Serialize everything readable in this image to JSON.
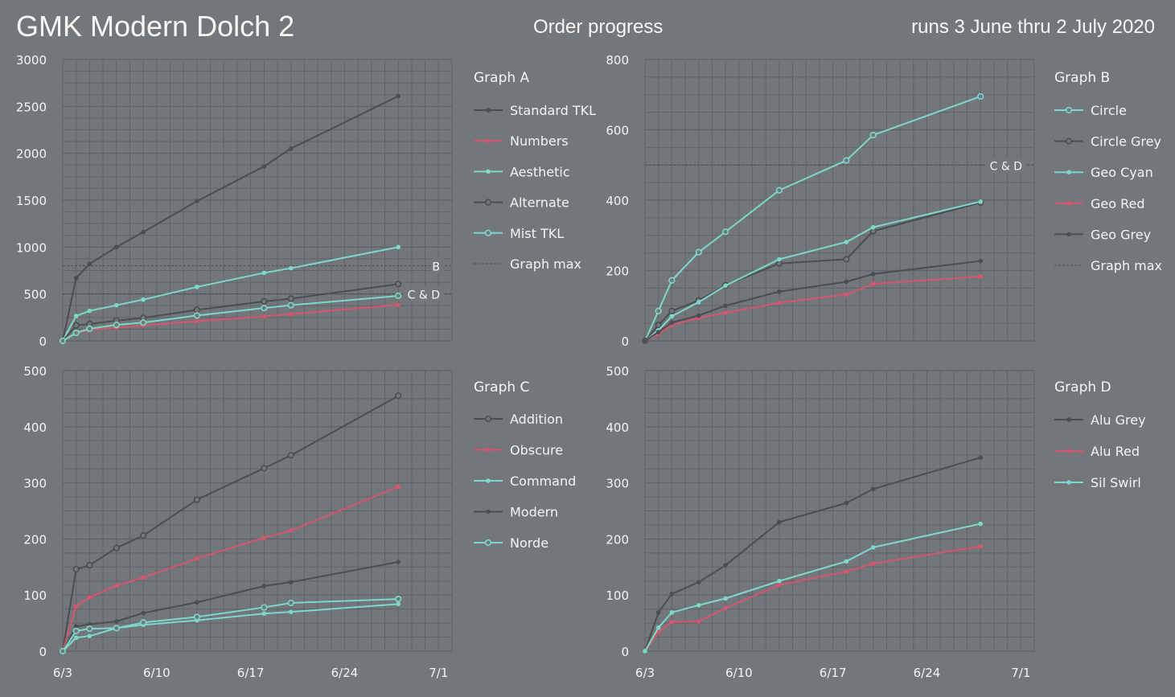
{
  "header": {
    "title": "GMK Modern Dolch 2",
    "subtitle": "Order progress",
    "dates": "runs 3 June thru 2 July 2020"
  },
  "colors": {
    "background": "#73777a",
    "grid": "#616467",
    "dark": "#4b4e51",
    "pink": "#d6556e",
    "cyan": "#7dd8cc"
  },
  "chart_data": [
    {
      "type": "line",
      "title": "Graph A",
      "x_dates": [
        "6/3",
        "6/4",
        "6/5",
        "6/7",
        "6/9",
        "6/13",
        "6/18",
        "6/20",
        "6/28"
      ],
      "xlim": [
        "6/3",
        "7/2"
      ],
      "xticks": [
        "6/3",
        "6/10",
        "6/17",
        "6/24",
        "7/1"
      ],
      "ylim": [
        0,
        3000
      ],
      "yticks": [
        0,
        500,
        1000,
        1500,
        2000,
        2500,
        3000
      ],
      "grid": true,
      "legend": "right",
      "series": [
        {
          "name": "Standard TKL",
          "color": "dark",
          "marker": "dot",
          "values": [
            0,
            670,
            820,
            1000,
            1160,
            1490,
            1860,
            2050,
            2610
          ]
        },
        {
          "name": "Numbers",
          "color": "pink",
          "marker": "dot",
          "values": [
            0,
            85,
            115,
            140,
            165,
            210,
            260,
            285,
            385
          ]
        },
        {
          "name": "Aesthetic",
          "color": "cyan",
          "marker": "dot",
          "values": [
            0,
            265,
            320,
            380,
            440,
            575,
            725,
            775,
            1000
          ]
        },
        {
          "name": "Alternate",
          "color": "dark",
          "marker": "circle",
          "values": [
            0,
            165,
            180,
            215,
            245,
            330,
            420,
            450,
            605
          ]
        },
        {
          "name": "Mist TKL",
          "color": "cyan",
          "marker": "circle",
          "values": [
            0,
            85,
            130,
            170,
            195,
            270,
            350,
            380,
            480
          ]
        }
      ],
      "reference_lines": [
        {
          "value": 800,
          "label": "B"
        },
        {
          "value": 500,
          "label": "C & D"
        }
      ],
      "max_legend": "Graph max"
    },
    {
      "type": "line",
      "title": "Graph B",
      "x_dates": [
        "6/3",
        "6/4",
        "6/5",
        "6/7",
        "6/9",
        "6/13",
        "6/18",
        "6/20",
        "6/28"
      ],
      "xlim": [
        "6/3",
        "7/2"
      ],
      "xticks": [
        "6/3",
        "6/10",
        "6/17",
        "6/24",
        "7/1"
      ],
      "ylim": [
        0,
        800
      ],
      "yticks": [
        0,
        200,
        400,
        600,
        800
      ],
      "grid": true,
      "legend": "right",
      "series": [
        {
          "name": "Circle",
          "color": "cyan",
          "marker": "circle",
          "values": [
            0,
            85,
            172,
            252,
            310,
            428,
            513,
            585,
            695
          ]
        },
        {
          "name": "Circle Grey",
          "color": "dark",
          "marker": "circle",
          "values": [
            0,
            45,
            85,
            115,
            158,
            220,
            232,
            312,
            393
          ]
        },
        {
          "name": "Geo Cyan",
          "color": "cyan",
          "marker": "dot",
          "values": [
            0,
            30,
            70,
            110,
            157,
            232,
            281,
            323,
            396
          ]
        },
        {
          "name": "Geo Red",
          "color": "pink",
          "marker": "dot",
          "values": [
            0,
            20,
            45,
            65,
            80,
            108,
            132,
            162,
            183
          ]
        },
        {
          "name": "Geo Grey",
          "color": "dark",
          "marker": "dot",
          "values": [
            0,
            25,
            52,
            72,
            100,
            140,
            168,
            190,
            227
          ]
        }
      ],
      "reference_lines": [
        {
          "value": 500,
          "label": "C & D"
        }
      ],
      "max_legend": "Graph max"
    },
    {
      "type": "line",
      "title": "Graph C",
      "x_dates": [
        "6/3",
        "6/4",
        "6/5",
        "6/7",
        "6/9",
        "6/13",
        "6/18",
        "6/20",
        "6/28"
      ],
      "xlim": [
        "6/3",
        "7/2"
      ],
      "xticks": [
        "6/3",
        "6/10",
        "6/17",
        "6/24",
        "7/1"
      ],
      "ylim": [
        0,
        500
      ],
      "yticks": [
        0,
        100,
        200,
        300,
        400,
        500
      ],
      "grid": true,
      "legend": "right",
      "series": [
        {
          "name": "Addition",
          "color": "dark",
          "marker": "circle",
          "values": [
            0,
            146,
            153,
            184,
            206,
            270,
            326,
            349,
            455
          ]
        },
        {
          "name": "Obscure",
          "color": "pink",
          "marker": "dot",
          "values": [
            0,
            80,
            96,
            117,
            131,
            165,
            202,
            215,
            293
          ]
        },
        {
          "name": "Command",
          "color": "cyan",
          "marker": "dot",
          "values": [
            0,
            24,
            27,
            41,
            47,
            55,
            67,
            70,
            84
          ]
        },
        {
          "name": "Modern",
          "color": "dark",
          "marker": "dot",
          "values": [
            0,
            44,
            48,
            53,
            68,
            87,
            116,
            123,
            159
          ]
        },
        {
          "name": "Norde",
          "color": "cyan",
          "marker": "circle",
          "values": [
            0,
            36,
            40,
            41,
            51,
            61,
            78,
            86,
            93
          ]
        }
      ]
    },
    {
      "type": "line",
      "title": "Graph D",
      "x_dates": [
        "6/3",
        "6/4",
        "6/5",
        "6/7",
        "6/9",
        "6/13",
        "6/18",
        "6/20",
        "6/28"
      ],
      "xlim": [
        "6/3",
        "7/2"
      ],
      "xticks": [
        "6/3",
        "6/10",
        "6/17",
        "6/24",
        "7/1"
      ],
      "ylim": [
        0,
        500
      ],
      "yticks": [
        0,
        100,
        200,
        300,
        400,
        500
      ],
      "grid": true,
      "legend": "right",
      "series": [
        {
          "name": "Alu Grey",
          "color": "dark",
          "marker": "dot",
          "values": [
            0,
            69,
            102,
            123,
            153,
            230,
            264,
            289,
            345
          ]
        },
        {
          "name": "Alu Red",
          "color": "pink",
          "marker": "dot",
          "values": [
            0,
            34,
            52,
            53,
            77,
            118,
            142,
            156,
            187
          ]
        },
        {
          "name": "Sil Swirl",
          "color": "cyan",
          "marker": "dot",
          "values": [
            0,
            42,
            69,
            82,
            94,
            125,
            160,
            185,
            227
          ]
        }
      ]
    }
  ]
}
